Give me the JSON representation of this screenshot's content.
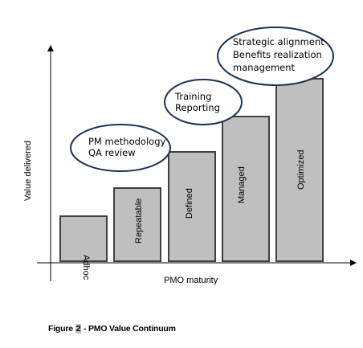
{
  "bars": [
    {
      "label": "Adhoc"
    },
    {
      "label": "Repeatable"
    },
    {
      "label": "Defined"
    },
    {
      "label": "Managed"
    },
    {
      "label": "Optimized"
    }
  ],
  "callouts": [
    {
      "lines": [
        "PM methodology",
        "QA review"
      ]
    },
    {
      "lines": [
        "Training",
        "Reporting"
      ]
    },
    {
      "lines": [
        "Strategic alignment",
        "Benefits realization",
        "management"
      ]
    }
  ],
  "axes": {
    "y_label": "Value delivered",
    "x_label": "PMO maturity"
  },
  "caption": {
    "prefix": "Figure ",
    "number": "2",
    "suffix": " - PMO Value Continuum"
  }
}
